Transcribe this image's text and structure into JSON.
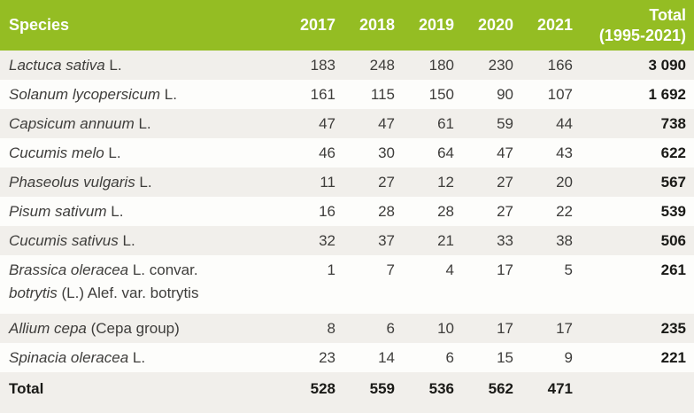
{
  "colors": {
    "header_bg": "#94bd23",
    "row_stripe": "#f1efeb",
    "row_white": "#fdfdfb",
    "body_text": "#3e3d3b",
    "bold_text": "#1a1a17"
  },
  "table": {
    "header": {
      "species": "Species",
      "years": [
        "2017",
        "2018",
        "2019",
        "2020",
        "2021"
      ],
      "total_line1": "Total",
      "total_line2": "(1995-2021)"
    },
    "rows": [
      {
        "name_lines": [
          [
            {
              "text": "Lactuca sativa",
              "italic": true
            },
            {
              "text": " L.",
              "italic": false
            }
          ]
        ],
        "values": [
          "183",
          "248",
          "180",
          "230",
          "166"
        ],
        "total": "3 090"
      },
      {
        "name_lines": [
          [
            {
              "text": "Solanum lycopersicum",
              "italic": true
            },
            {
              "text": " L.",
              "italic": false
            }
          ]
        ],
        "values": [
          "161",
          "115",
          "150",
          "90",
          "107"
        ],
        "total": "1 692"
      },
      {
        "name_lines": [
          [
            {
              "text": "Capsicum annuum",
              "italic": true
            },
            {
              "text": " L.",
              "italic": false
            }
          ]
        ],
        "values": [
          "47",
          "47",
          "61",
          "59",
          "44"
        ],
        "total": "738"
      },
      {
        "name_lines": [
          [
            {
              "text": "Cucumis melo",
              "italic": true
            },
            {
              "text": " L.",
              "italic": false
            }
          ]
        ],
        "values": [
          "46",
          "30",
          "64",
          "47",
          "43"
        ],
        "total": "622"
      },
      {
        "name_lines": [
          [
            {
              "text": "Phaseolus vulgaris",
              "italic": true
            },
            {
              "text": " L.",
              "italic": false
            }
          ]
        ],
        "values": [
          "11",
          "27",
          "12",
          "27",
          "20"
        ],
        "total": "567"
      },
      {
        "name_lines": [
          [
            {
              "text": "Pisum sativum",
              "italic": true
            },
            {
              "text": " L.",
              "italic": false
            }
          ]
        ],
        "values": [
          "16",
          "28",
          "28",
          "27",
          "22"
        ],
        "total": "539"
      },
      {
        "name_lines": [
          [
            {
              "text": "Cucumis sativus",
              "italic": true
            },
            {
              "text": " L.",
              "italic": false
            }
          ]
        ],
        "values": [
          "32",
          "37",
          "21",
          "33",
          "38"
        ],
        "total": "506"
      },
      {
        "name_lines": [
          [
            {
              "text": "Brassica oleracea",
              "italic": true
            },
            {
              "text": " L. convar.",
              "italic": false
            }
          ],
          [
            {
              "text": "botrytis",
              "italic": true
            },
            {
              "text": " (L.) Alef. var. botrytis",
              "italic": false
            }
          ]
        ],
        "values": [
          "1",
          "7",
          "4",
          "17",
          "5"
        ],
        "total": "261"
      },
      {
        "name_lines": [
          [
            {
              "text": "Allium cepa",
              "italic": true
            },
            {
              "text": " (Cepa group)",
              "italic": false
            }
          ]
        ],
        "values": [
          "8",
          "6",
          "10",
          "17",
          "17"
        ],
        "total": "235"
      },
      {
        "name_lines": [
          [
            {
              "text": "Spinacia oleracea",
              "italic": true
            },
            {
              "text": " L.",
              "italic": false
            }
          ]
        ],
        "values": [
          "23",
          "14",
          "6",
          "15",
          "9"
        ],
        "total": "221"
      }
    ],
    "footer": {
      "label": "Total",
      "values": [
        "528",
        "559",
        "536",
        "562",
        "471"
      ],
      "total": ""
    }
  }
}
